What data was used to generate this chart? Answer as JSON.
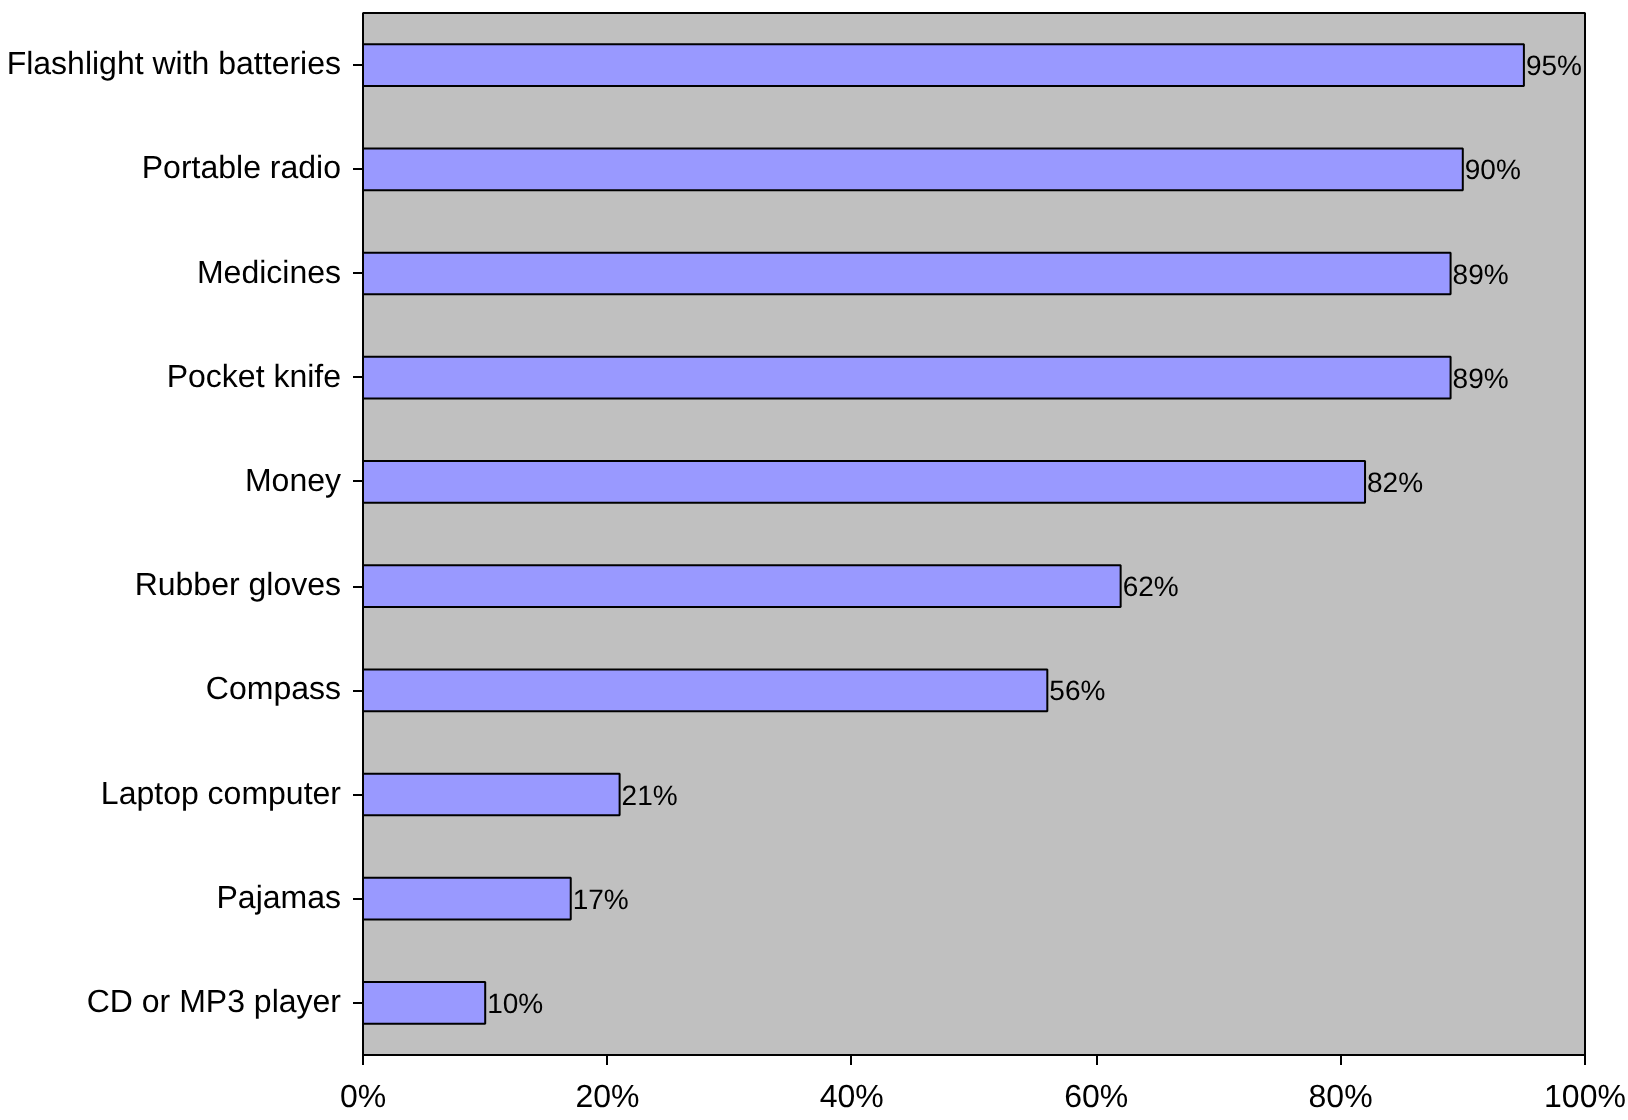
{
  "chart_data": {
    "type": "bar",
    "orientation": "horizontal",
    "categories": [
      "Flashlight with batteries",
      "Portable radio",
      "Medicines",
      "Pocket knife",
      "Money",
      "Rubber gloves",
      "Compass",
      "Laptop computer",
      "Pajamas",
      "CD or MP3 player"
    ],
    "values": [
      95,
      90,
      89,
      89,
      82,
      62,
      56,
      21,
      17,
      10
    ],
    "value_labels": [
      "95%",
      "90%",
      "89%",
      "89%",
      "82%",
      "62%",
      "56%",
      "21%",
      "17%",
      "10%"
    ],
    "color": "#9999ff",
    "xlim": [
      0,
      100
    ],
    "xticks": [
      {
        "value": 0,
        "label": "0%"
      },
      {
        "value": 20,
        "label": "20%"
      },
      {
        "value": 40,
        "label": "40%"
      },
      {
        "value": 60,
        "label": "60%"
      },
      {
        "value": 80,
        "label": "80%"
      },
      {
        "value": 100,
        "label": "100%"
      }
    ],
    "grid": false
  }
}
